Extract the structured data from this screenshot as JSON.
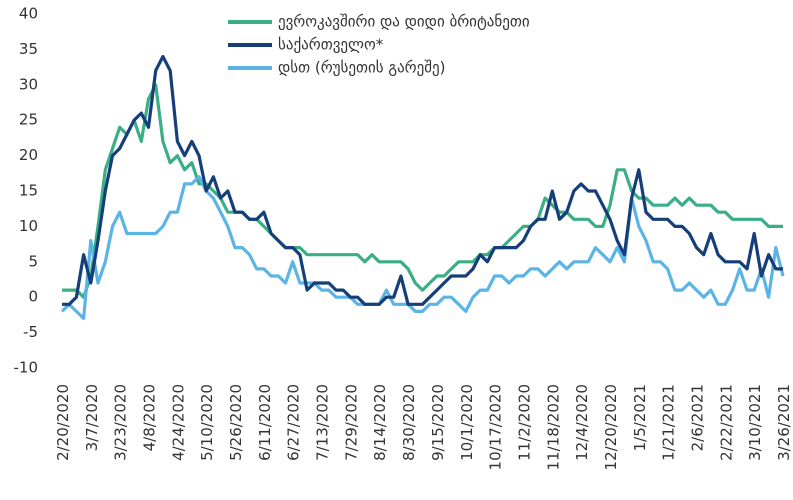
{
  "chart_data": {
    "type": "line",
    "categories": [
      "2/20/2020",
      null,
      null,
      null,
      "3/7/2020",
      null,
      null,
      null,
      "3/23/2020",
      null,
      null,
      null,
      "4/8/2020",
      null,
      null,
      null,
      "4/24/2020",
      null,
      null,
      null,
      "5/10/2020",
      null,
      null,
      null,
      "5/26/2020",
      null,
      null,
      null,
      "6/11/2020",
      null,
      null,
      null,
      "6/27/2020",
      null,
      null,
      null,
      "7/13/2020",
      null,
      null,
      null,
      "7/29/2020",
      null,
      null,
      null,
      "8/14/2020",
      null,
      null,
      null,
      "8/30/2020",
      null,
      null,
      null,
      "9/15/2020",
      null,
      null,
      null,
      "10/1/2020",
      null,
      null,
      null,
      "10/17/2020",
      null,
      null,
      null,
      "11/2/2020",
      null,
      null,
      null,
      "11/18/2020",
      null,
      null,
      null,
      "12/4/2020",
      null,
      null,
      null,
      "12/20/2020",
      null,
      null,
      null,
      "1/5/2021",
      null,
      null,
      null,
      "1/21/2021",
      null,
      null,
      null,
      "2/6/2021",
      null,
      null,
      null,
      "2/22/2021",
      null,
      null,
      null,
      "3/10/2021",
      null,
      null,
      null,
      "3/26/2021"
    ],
    "series": [
      {
        "name": "ევროკავშირი და დიდი ბრიტანეთი",
        "color": "#3aaf85",
        "values": [
          1,
          1,
          1,
          0,
          3,
          10,
          18,
          21,
          24,
          23,
          25,
          22,
          28,
          30,
          22,
          19,
          20,
          18,
          19,
          16,
          16,
          15,
          14,
          12,
          12,
          12,
          11,
          11,
          10,
          9,
          8,
          7,
          7,
          7,
          6,
          6,
          6,
          6,
          6,
          6,
          6,
          6,
          5,
          6,
          5,
          5,
          5,
          5,
          4,
          2,
          1,
          2,
          3,
          3,
          4,
          5,
          5,
          5,
          6,
          6,
          7,
          7,
          8,
          9,
          10,
          10,
          11,
          14,
          13,
          12,
          12,
          11,
          11,
          11,
          10,
          10,
          13,
          18,
          18,
          15,
          14,
          14,
          13,
          13,
          13,
          14,
          13,
          14,
          13,
          13,
          13,
          12,
          12,
          11,
          11,
          11,
          11,
          11,
          10,
          10,
          10
        ]
      },
      {
        "name": "დსთ (რუსეთის გარეშე)",
        "color": "#5ab4e5",
        "values": [
          -2,
          -1,
          -2,
          -3,
          8,
          2,
          5,
          10,
          12,
          9,
          9,
          9,
          9,
          9,
          10,
          12,
          12,
          16,
          16,
          17,
          15,
          14,
          12,
          10,
          7,
          7,
          6,
          4,
          4,
          3,
          3,
          2,
          5,
          2,
          2,
          2,
          1,
          1,
          0,
          0,
          0,
          -1,
          -1,
          -1,
          -1,
          1,
          -1,
          -1,
          -1,
          -2,
          -2,
          -1,
          -1,
          0,
          0,
          -1,
          -2,
          0,
          1,
          1,
          3,
          3,
          2,
          3,
          3,
          4,
          4,
          3,
          4,
          5,
          4,
          5,
          5,
          5,
          7,
          6,
          5,
          7,
          5,
          14,
          10,
          8,
          5,
          5,
          4,
          1,
          1,
          2,
          1,
          0,
          1,
          -1,
          -1,
          1,
          4,
          1,
          1,
          4,
          0,
          7,
          3
        ]
      },
      {
        "name": "საქართველო*",
        "color": "#163f7a",
        "values": [
          -1,
          -1,
          0,
          6,
          2,
          8,
          15,
          20,
          21,
          23,
          25,
          26,
          24,
          32,
          34,
          32,
          22,
          20,
          22,
          20,
          15,
          17,
          14,
          15,
          12,
          12,
          11,
          11,
          12,
          9,
          8,
          7,
          7,
          6,
          1,
          2,
          2,
          2,
          1,
          1,
          0,
          0,
          -1,
          -1,
          -1,
          0,
          0,
          3,
          -1,
          -1,
          -1,
          0,
          1,
          2,
          3,
          3,
          3,
          4,
          6,
          5,
          7,
          7,
          7,
          7,
          8,
          10,
          11,
          11,
          15,
          11,
          12,
          15,
          16,
          15,
          15,
          13,
          11,
          8,
          6,
          14,
          18,
          12,
          11,
          11,
          11,
          10,
          10,
          9,
          7,
          6,
          9,
          6,
          5,
          5,
          5,
          4,
          9,
          3,
          6,
          4,
          4
        ]
      }
    ],
    "legend_order": [
      "ევროკავშირი და დიდი ბრიტანეთი",
      "საქართველო*",
      "დსთ (რუსეთის გარეშე)"
    ],
    "ylim": [
      -10,
      40
    ],
    "yticks": [
      -10,
      -5,
      0,
      5,
      10,
      15,
      20,
      25,
      30,
      35,
      40
    ],
    "grid": false
  }
}
